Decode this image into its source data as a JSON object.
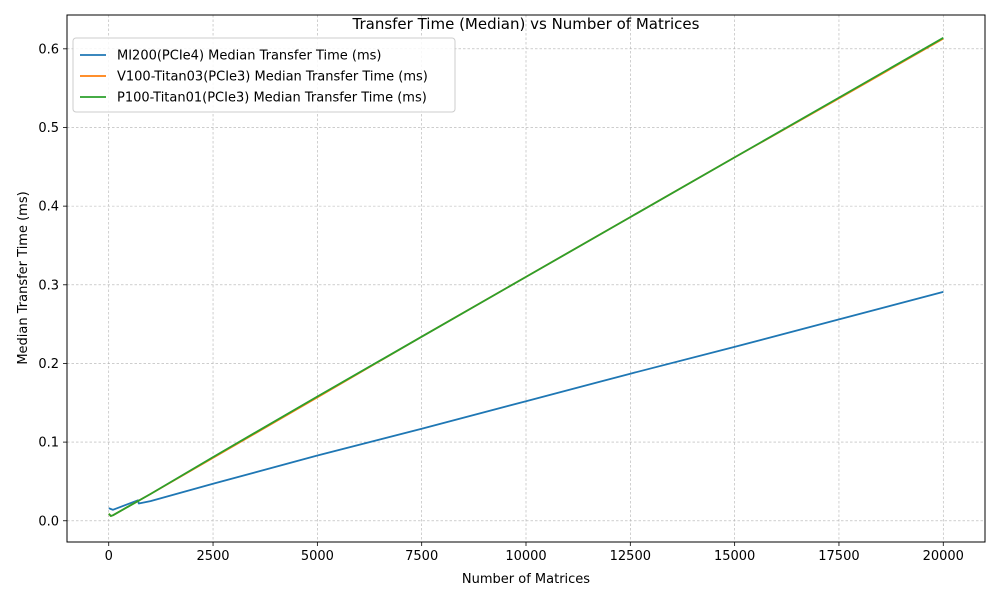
{
  "chart_data": {
    "type": "line",
    "title": "Transfer Time (Median) vs Number of Matrices",
    "xlabel": "Number of Matrices",
    "ylabel": "Median Transfer Time (ms)",
    "xlim": [
      -1000,
      21000
    ],
    "ylim": [
      -0.027,
      0.643
    ],
    "xticks": [
      0,
      2500,
      5000,
      7500,
      10000,
      12500,
      15000,
      17500,
      20000
    ],
    "xtick_labels": [
      "0",
      "2500",
      "5000",
      "7500",
      "10000",
      "12500",
      "15000",
      "17500",
      "20000"
    ],
    "yticks": [
      0.0,
      0.1,
      0.2,
      0.3,
      0.4,
      0.5,
      0.6
    ],
    "ytick_labels": [
      "0.0",
      "0.1",
      "0.2",
      "0.3",
      "0.4",
      "0.5",
      "0.6"
    ],
    "grid": true,
    "legend_position": "top-left",
    "series": [
      {
        "name": "MI200(PCIe4) Median Transfer Time (ms)",
        "color": "#1f77b4",
        "x": [
          1,
          50,
          100,
          700,
          720,
          1000,
          2500,
          5000,
          7500,
          10000,
          12500,
          15000,
          17500,
          20000
        ],
        "y": [
          0.016,
          0.015,
          0.014,
          0.026,
          0.022,
          0.025,
          0.047,
          0.083,
          0.117,
          0.152,
          0.187,
          0.221,
          0.256,
          0.291
        ]
      },
      {
        "name": "V100-Titan03(PCIe3) Median Transfer Time (ms)",
        "color": "#ff7f0e",
        "x": [
          1,
          50,
          100,
          500,
          1000,
          2500,
          5000,
          7500,
          10000,
          12500,
          15000,
          17500,
          20000
        ],
        "y": [
          0.009,
          0.006,
          0.007,
          0.019,
          0.034,
          0.08,
          0.157,
          0.234,
          0.31,
          0.386,
          0.462,
          0.537,
          0.613
        ]
      },
      {
        "name": "P100-Titan01(PCIe3) Median Transfer Time (ms)",
        "color": "#2ca02c",
        "x": [
          1,
          50,
          100,
          500,
          1000,
          2500,
          5000,
          7500,
          10000,
          12500,
          15000,
          17500,
          20000
        ],
        "y": [
          0.009,
          0.006,
          0.007,
          0.019,
          0.034,
          0.081,
          0.158,
          0.234,
          0.31,
          0.386,
          0.462,
          0.538,
          0.614
        ]
      }
    ]
  }
}
